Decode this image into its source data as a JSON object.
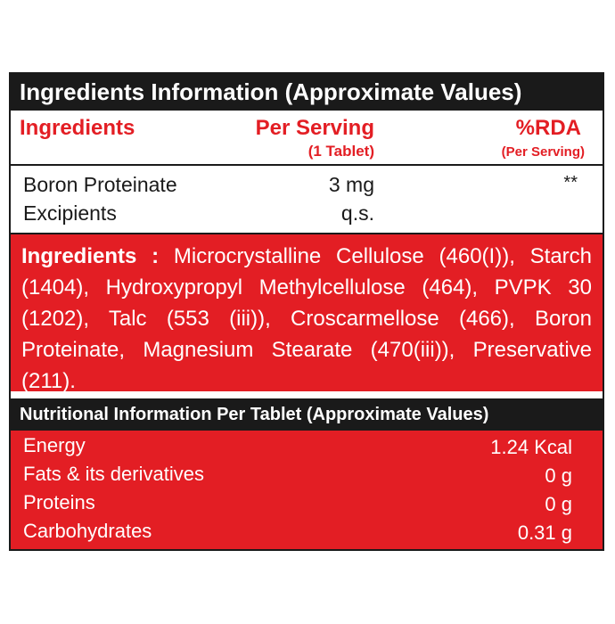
{
  "ingredients_info": {
    "title": "Ingredients Information (Approximate Values)",
    "headers": {
      "ingredients": "Ingredients",
      "per_serving": "Per Serving",
      "per_serving_sub": "(1 Tablet)",
      "rda": "%RDA",
      "rda_sub": "(Per Serving)"
    },
    "rows": [
      {
        "name": "Boron Proteinate",
        "per_serving": "3 mg",
        "rda": "**"
      },
      {
        "name": "Excipients",
        "per_serving": "q.s.",
        "rda": ""
      }
    ]
  },
  "ingredients_text": {
    "lead": "Ingredients  :",
    "body": " Microcrystalline Cellulose (460(I)), Starch (1404), Hydroxypropyl Methylcellulose (464), PVPK 30 (1202), Talc (553 (iii)), Croscarmellose (466), Boron Proteinate, Magnesium Stearate (470(iii)), Preservative (211)."
  },
  "nutrition": {
    "title": "Nutritional Information Per Tablet (Approximate Values)",
    "rows": [
      {
        "label": "Energy",
        "value": "1.24 Kcal"
      },
      {
        "label": "Fats & its derivatives",
        "value": "0 g"
      },
      {
        "label": "Proteins",
        "value": "0 g"
      },
      {
        "label": "Carbohydrates",
        "value": "0.31 g"
      }
    ]
  },
  "colors": {
    "accent_red": "#e31e24",
    "dark": "#1a1a1a"
  }
}
